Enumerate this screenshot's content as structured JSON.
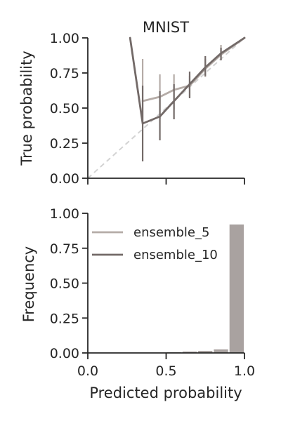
{
  "chart_data": [
    {
      "type": "line",
      "title": "MNIST",
      "xlabel": "",
      "ylabel": "True probability",
      "xlim": [
        0,
        1
      ],
      "ylim": [
        0,
        1
      ],
      "yticks": [
        "0.00",
        "0.25",
        "0.50",
        "0.75",
        "1.00"
      ],
      "xticks_labeled": false,
      "xticks": [
        0,
        0.5,
        1
      ],
      "diagonal_reference": true,
      "series": [
        {
          "name": "ensemble_5",
          "color": "#b5aca7",
          "points": [
            {
              "x": 0.35,
              "y": 0.55,
              "lo": 0.38,
              "hi": 0.85
            },
            {
              "x": 0.46,
              "y": 0.58,
              "lo": 0.42,
              "hi": 0.74
            },
            {
              "x": 0.55,
              "y": 0.63,
              "lo": 0.49,
              "hi": 0.74
            },
            {
              "x": 0.65,
              "y": 0.66,
              "lo": 0.58,
              "hi": 0.73
            },
            {
              "x": 0.75,
              "y": 0.78,
              "lo": 0.72,
              "hi": 0.85
            },
            {
              "x": 0.85,
              "y": 0.88,
              "lo": 0.84,
              "hi": 0.95
            },
            {
              "x": 1.0,
              "y": 1.0,
              "lo": 1.0,
              "hi": 1.0
            }
          ]
        },
        {
          "name": "ensemble_10",
          "color": "#736a68",
          "points": [
            {
              "x": 0.27,
              "y": 1.0,
              "lo": 1.0,
              "hi": 1.0
            },
            {
              "x": 0.35,
              "y": 0.39,
              "lo": 0.12,
              "hi": 0.66
            },
            {
              "x": 0.46,
              "y": 0.44,
              "lo": 0.27,
              "hi": 0.62
            },
            {
              "x": 0.55,
              "y": 0.55,
              "lo": 0.42,
              "hi": 0.67
            },
            {
              "x": 0.65,
              "y": 0.67,
              "lo": 0.57,
              "hi": 0.76
            },
            {
              "x": 0.75,
              "y": 0.79,
              "lo": 0.73,
              "hi": 0.87
            },
            {
              "x": 0.85,
              "y": 0.89,
              "lo": 0.84,
              "hi": 0.93
            },
            {
              "x": 1.0,
              "y": 1.0,
              "lo": 1.0,
              "hi": 1.0
            }
          ]
        }
      ]
    },
    {
      "type": "bar",
      "title": "",
      "xlabel": "Predicted probability",
      "ylabel": "Frequency",
      "xlim": [
        0,
        1
      ],
      "ylim": [
        0,
        1
      ],
      "xticks": [
        "0.0",
        "0.5",
        "1.0"
      ],
      "yticks": [
        "0.00",
        "0.25",
        "0.50",
        "0.75",
        "1.00"
      ],
      "legend": {
        "placement": "upper-left",
        "entries": [
          "ensemble_5",
          "ensemble_10"
        ]
      },
      "bar_color": "#a9a2a0",
      "bins": [
        {
          "x0": 0.4,
          "x1": 0.5,
          "value": 0.0
        },
        {
          "x0": 0.5,
          "x1": 0.6,
          "value": 0.005
        },
        {
          "x0": 0.6,
          "x1": 0.7,
          "value": 0.01
        },
        {
          "x0": 0.7,
          "x1": 0.8,
          "value": 0.015
        },
        {
          "x0": 0.8,
          "x1": 0.9,
          "value": 0.025
        },
        {
          "x0": 0.9,
          "x1": 1.0,
          "value": 0.92
        }
      ]
    }
  ]
}
